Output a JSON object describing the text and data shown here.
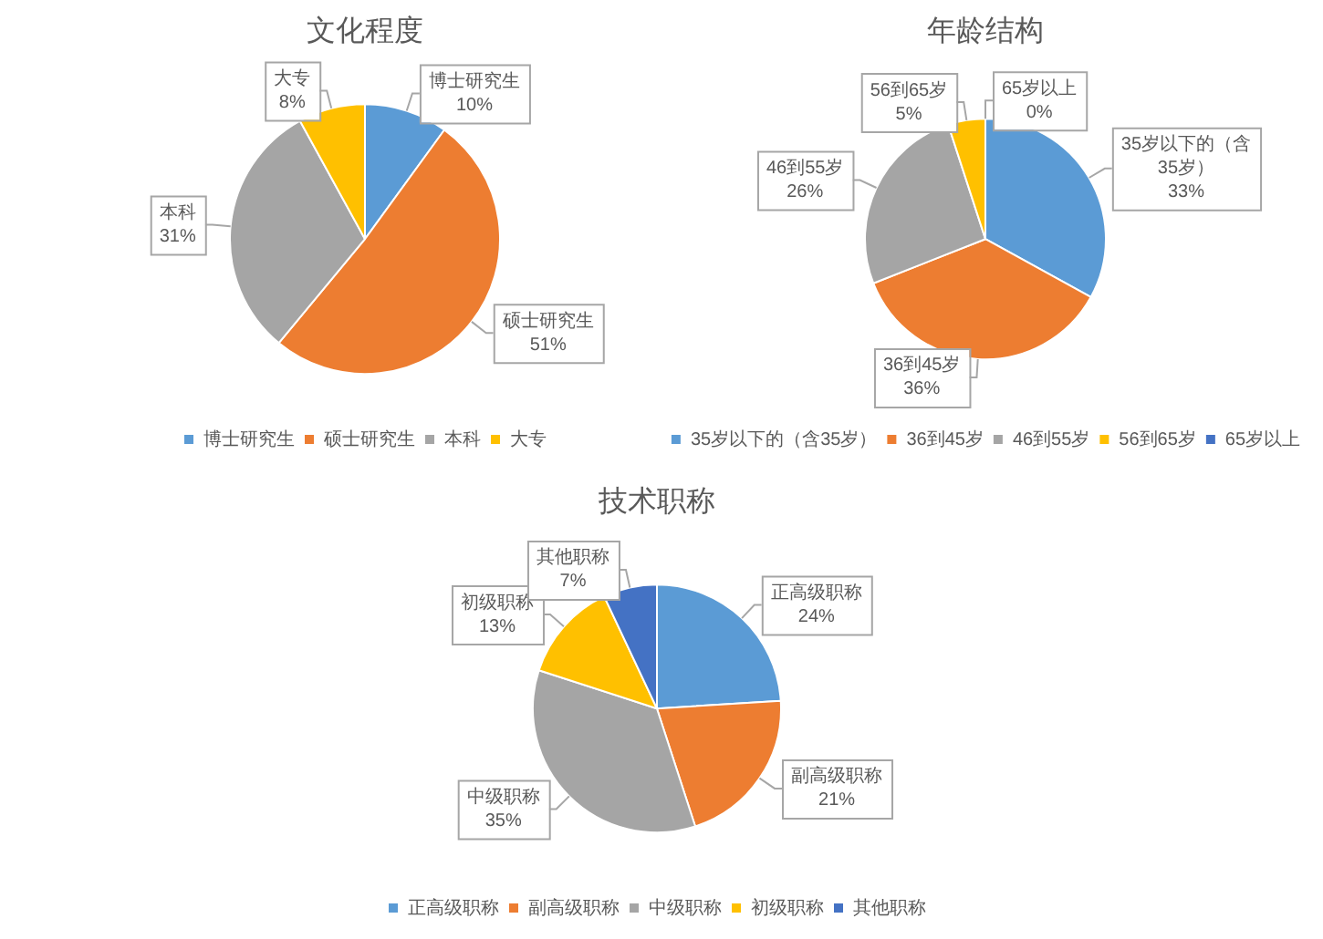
{
  "chart_data": [
    {
      "type": "pie",
      "title": "文化程度",
      "categories": [
        "博士研究生",
        "硕士研究生",
        "本科",
        "大专"
      ],
      "values": [
        10,
        51,
        31,
        8
      ],
      "colors": [
        "#5b9bd5",
        "#ed7d31",
        "#a5a5a5",
        "#ffc000"
      ],
      "value_labels": [
        "10%",
        "51%",
        "31%",
        "8%"
      ],
      "legend": "bottom"
    },
    {
      "type": "pie",
      "title": "年龄结构",
      "categories": [
        "35岁以下的（含35岁）",
        "36到45岁",
        "46到55岁",
        "56到65岁",
        "65岁以上"
      ],
      "values": [
        33,
        36,
        26,
        5,
        0
      ],
      "colors": [
        "#5b9bd5",
        "#ed7d31",
        "#a5a5a5",
        "#ffc000",
        "#4472c4"
      ],
      "value_labels": [
        "33%",
        "36%",
        "26%",
        "5%",
        "0%"
      ],
      "legend": "bottom"
    },
    {
      "type": "pie",
      "title": "技术职称",
      "categories": [
        "正高级职称",
        "副高级职称",
        "中级职称",
        "初级职称",
        "其他职称"
      ],
      "values": [
        24,
        21,
        35,
        13,
        7
      ],
      "colors": [
        "#5b9bd5",
        "#ed7d31",
        "#a5a5a5",
        "#ffc000",
        "#4472c4"
      ],
      "value_labels": [
        "24%",
        "21%",
        "35%",
        "13%",
        "7%"
      ],
      "legend": "bottom"
    }
  ]
}
